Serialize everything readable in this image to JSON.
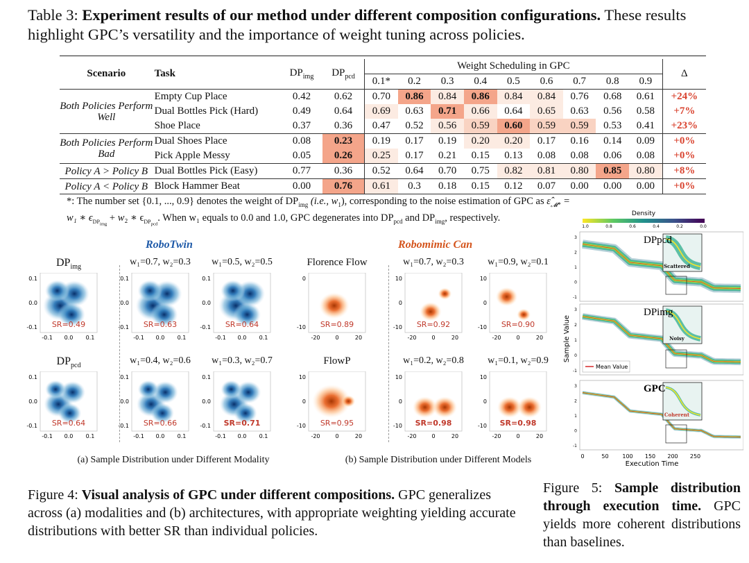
{
  "table_caption": {
    "prefix": "Table 3:",
    "bold": "Experiment results of our method under different composition configurations.",
    "rest": "These results highlight GPC’s versatility and the importance of weight tuning across policies."
  },
  "table": {
    "headers": {
      "scenario": "Scenario",
      "task": "Task",
      "dp_img": "DP",
      "dp_img_sub": "img",
      "dp_pcd": "DP",
      "dp_pcd_sub": "pcd",
      "weight_group": "Weight Scheduling in GPC",
      "weights": [
        "0.1*",
        "0.2",
        "0.3",
        "0.4",
        "0.5",
        "0.6",
        "0.7",
        "0.8",
        "0.9"
      ],
      "delta": "Δ"
    },
    "groups": [
      {
        "scenario": "Both Policies Perform Well",
        "rows": [
          {
            "task": "Empty Cup Place",
            "dp_img": "0.42",
            "dp_pcd": "0.62",
            "w": [
              "0.70",
              "0.86",
              "0.84",
              "0.86",
              "0.84",
              "0.84",
              "0.76",
              "0.68",
              "0.61"
            ],
            "delta": "+24%"
          },
          {
            "task": "Dual Bottles Pick (Hard)",
            "dp_img": "0.49",
            "dp_pcd": "0.64",
            "w": [
              "0.69",
              "0.63",
              "0.71",
              "0.66",
              "0.64",
              "0.65",
              "0.63",
              "0.56",
              "0.58"
            ],
            "delta": "+7%"
          },
          {
            "task": "Shoe Place",
            "dp_img": "0.37",
            "dp_pcd": "0.36",
            "w": [
              "0.47",
              "0.52",
              "0.56",
              "0.59",
              "0.60",
              "0.59",
              "0.59",
              "0.53",
              "0.41"
            ],
            "delta": "+23%"
          }
        ]
      },
      {
        "scenario": "Both Policies Perform Bad",
        "rows": [
          {
            "task": "Dual Shoes Place",
            "dp_img": "0.08",
            "dp_pcd": "0.23",
            "w": [
              "0.19",
              "0.17",
              "0.19",
              "0.20",
              "0.20",
              "0.17",
              "0.16",
              "0.14",
              "0.09"
            ],
            "delta": "+0%"
          },
          {
            "task": "Pick Apple Messy",
            "dp_img": "0.05",
            "dp_pcd": "0.26",
            "w": [
              "0.25",
              "0.17",
              "0.21",
              "0.15",
              "0.13",
              "0.08",
              "0.08",
              "0.06",
              "0.08"
            ],
            "delta": "+0%"
          }
        ]
      },
      {
        "scenario": "Policy A  > Policy B",
        "rows": [
          {
            "task": "Dual Bottles Pick (Easy)",
            "dp_img": "0.77",
            "dp_pcd": "0.36",
            "w": [
              "0.52",
              "0.64",
              "0.70",
              "0.75",
              "0.82",
              "0.81",
              "0.80",
              "0.85",
              "0.80"
            ],
            "delta": "+8%"
          }
        ]
      },
      {
        "scenario": "Policy A  < Policy B",
        "rows": [
          {
            "task": "Block Hammer Beat",
            "dp_img": "0.00",
            "dp_pcd": "0.76",
            "w": [
              "0.61",
              "0.3",
              "0.18",
              "0.15",
              "0.12",
              "0.07",
              "0.00",
              "0.00",
              "0.00"
            ],
            "delta": "+0%"
          }
        ]
      }
    ],
    "colors": {
      "strong": "#f4a58a",
      "mid": "#f9d3c2",
      "light": "#fcebe2",
      "delta": "#d9432f"
    }
  },
  "footnote": {
    "line1": "*: The number set {0.1, ..., 0.9} denotes the weight of DP",
    "line1_sub": "img",
    "line1_b": " (i.e., w",
    "line1_c": "), corresponding to the noise estimation of GPC as ",
    "line2": "w₁ ∗ ϵ",
    "line2_rest": ". When w₁ equals to 0.0 and 1.0, GPC degenerates into DP",
    "line2_end": " and DP",
    "line2_final": ", respectively."
  },
  "fig4": {
    "robotwin_title": "RoboTwin",
    "robomimic_title": "Robomimic Can",
    "robotwin_color": "#1f5aa8",
    "robomimic_color": "#d4541c",
    "top_labels": [
      "DP_img",
      "w₁=0.7, w₂=0.3",
      "w₁=0.5, w₂=0.5",
      "Florence Flow",
      "w₁=0.7, w₂=0.3",
      "w₁=0.9, w₂=0.1"
    ],
    "bottom_labels": [
      "DP_pcd",
      "w₁=0.4, w₂=0.6",
      "w₁=0.3, w₂=0.7",
      "FlowP",
      "w₁=0.2, w₂=0.8",
      "w₁=0.1, w₂=0.9"
    ],
    "top_sr": [
      "SR=0.49",
      "SR=0.63",
      "SR=0.64",
      "SR=0.89",
      "SR=0.92",
      "SR=0.90"
    ],
    "bottom_sr": [
      "SR=0.64",
      "SR=0.66",
      "SR=0.71",
      "SR=0.95",
      "SR=0.98",
      "SR=0.98"
    ],
    "subcap_a": "(a) Sample Distribution under Different Modality",
    "subcap_b": "(b) Sample Distribution under Different Models",
    "caption_prefix": "Figure 4:",
    "caption_bold": "Visual analysis of GPC under different compositions.",
    "caption_rest": "GPC generalizes across (a) modalities and (b) architectures, with appropriate weighting yielding accurate distributions with better SR than individual policies."
  },
  "fig5": {
    "density_label": "Density",
    "density_ticks": [
      "1.0",
      "0.8",
      "0.6",
      "0.4",
      "0.2",
      "0.0"
    ],
    "panel_labels": [
      "DPpcd",
      "DPimg",
      "GPC"
    ],
    "inset_labels": [
      "Scattered",
      "Noisy",
      "Coherent"
    ],
    "ylabel": "Sample Value",
    "xlabel": "Execution Time",
    "legend": "Mean Value",
    "xticks": [
      "0",
      "50",
      "100",
      "150",
      "200",
      "250"
    ],
    "caption_prefix": "Figure 5:",
    "caption_bold": "Sample distribution through execution time.",
    "caption_rest": "GPC yields more coherent distributions than baselines."
  }
}
